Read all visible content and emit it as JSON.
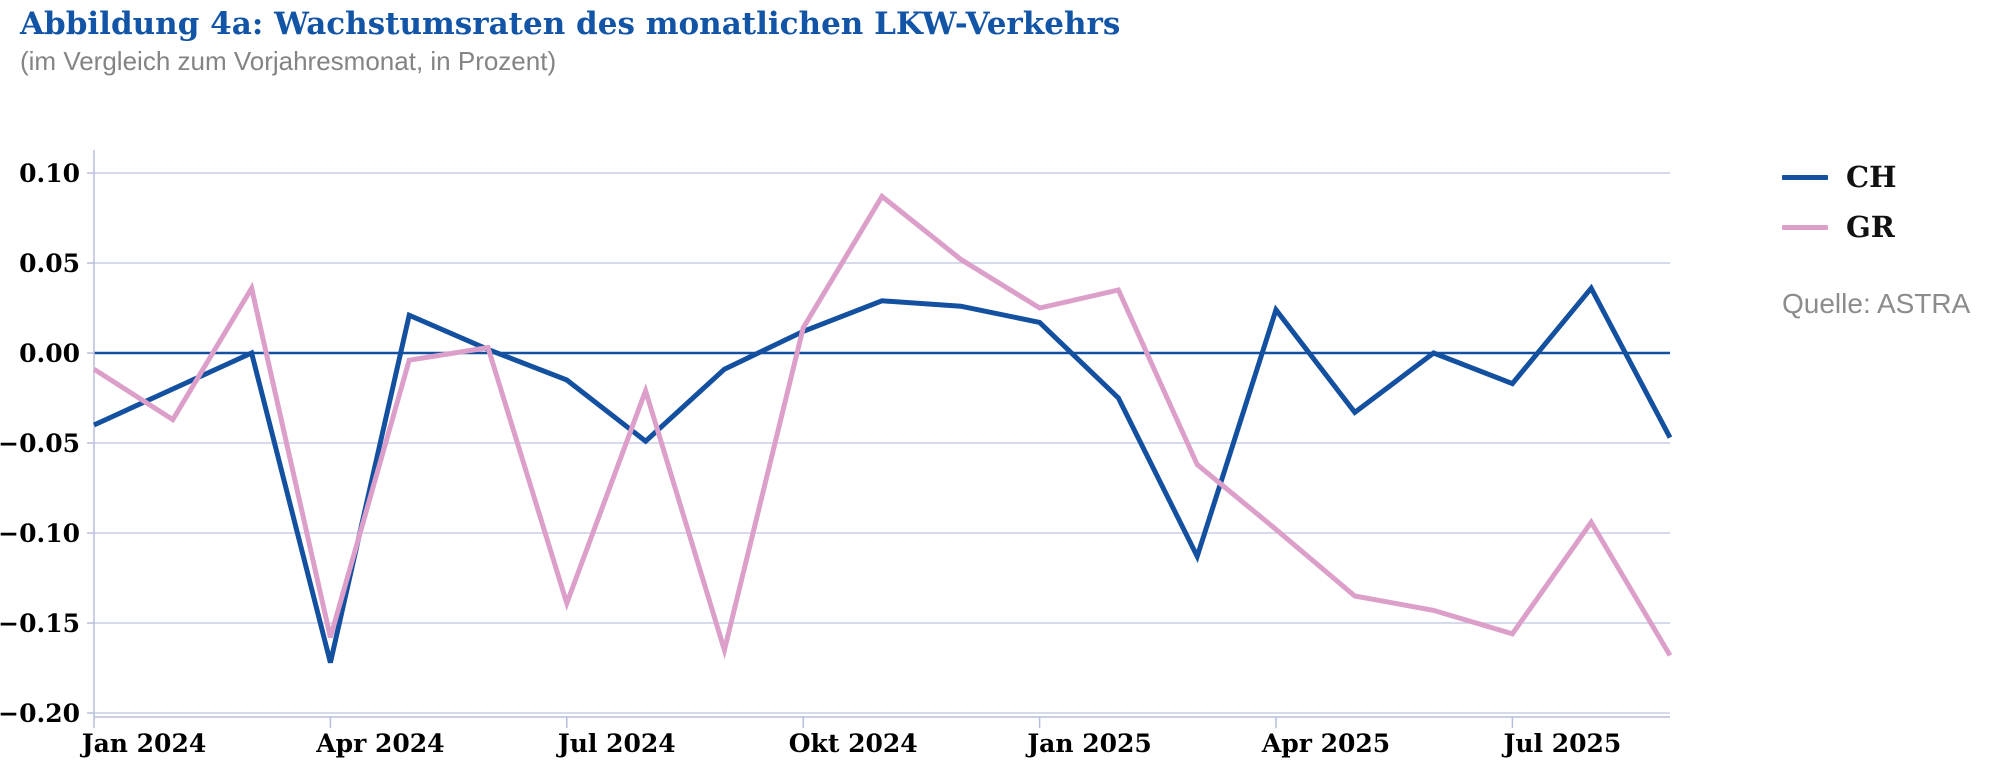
{
  "header": {
    "title": "Abbildung 4a: Wachstumsraten des monatlichen LKW-Verkehrs",
    "subtitle": "(im Vergleich zum Vorjahresmonat, in Prozent)"
  },
  "legend": {
    "items": [
      {
        "label": "CH",
        "color": "#1450a0"
      },
      {
        "label": "GR",
        "color": "#dc9fca"
      }
    ]
  },
  "source": {
    "text": "Quelle: ASTRA"
  },
  "chart_data": {
    "type": "line",
    "title": "Abbildung 4a: Wachstumsraten des monatlichen LKW-Verkehrs",
    "subtitle": "(im Vergleich zum Vorjahresmonat, in Prozent)",
    "categories": [
      "Jan 2024",
      "Feb 2024",
      "Mär 2024",
      "Apr 2024",
      "Mai 2024",
      "Jun 2024",
      "Jul 2024",
      "Aug 2024",
      "Sep 2024",
      "Okt 2024",
      "Nov 2024",
      "Dez 2024",
      "Jan 2025",
      "Feb 2025",
      "Mär 2025",
      "Apr 2025",
      "Mai 2025",
      "Jun 2025",
      "Jul 2025",
      "Aug 2025",
      "Sep 2025"
    ],
    "series": [
      {
        "name": "CH",
        "color": "#1450a0",
        "values": [
          -0.04,
          -0.02,
          0.0,
          -0.172,
          0.021,
          0.002,
          -0.015,
          -0.049,
          -0.009,
          0.012,
          0.029,
          0.026,
          0.017,
          -0.025,
          -0.113,
          0.024,
          -0.033,
          0.0,
          -0.017,
          0.036,
          -0.047
        ]
      },
      {
        "name": "GR",
        "color": "#dc9fca",
        "values": [
          -0.009,
          -0.037,
          0.036,
          -0.158,
          -0.004,
          0.003,
          -0.139,
          -0.021,
          -0.165,
          0.014,
          0.087,
          0.052,
          0.025,
          0.035,
          -0.062,
          -0.098,
          -0.135,
          -0.143,
          -0.156,
          -0.094,
          -0.168
        ]
      }
    ],
    "x_ticks": [
      {
        "index": 0,
        "label": "Jan 2024"
      },
      {
        "index": 3,
        "label": "Apr 2024"
      },
      {
        "index": 6,
        "label": "Jul 2024"
      },
      {
        "index": 9,
        "label": "Okt 2024"
      },
      {
        "index": 12,
        "label": "Jan 2025"
      },
      {
        "index": 15,
        "label": "Apr 2025"
      },
      {
        "index": 18,
        "label": "Jul 2025"
      }
    ],
    "y_ticks": [
      0.1,
      0.05,
      0.0,
      -0.05,
      -0.1,
      -0.15,
      -0.2
    ],
    "ylim": [
      -0.2022,
      0.1128
    ],
    "xlabel": "",
    "ylabel": "",
    "grid": "horizontal",
    "zero_line": true,
    "legend_position": "right",
    "source": "Quelle: ASTRA",
    "colors": {
      "grid": "#c9cfe6",
      "axis": "#b7bedd",
      "zero_line": "#1450a0",
      "tick_label": "#000000"
    }
  }
}
